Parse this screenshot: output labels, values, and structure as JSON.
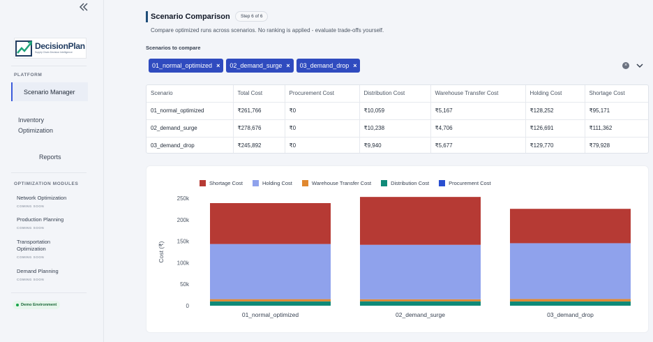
{
  "sidebar": {
    "collapse_icon": "double-chevron-left-icon",
    "logo": {
      "name": "DecisionPlan",
      "tagline": "Supply Chain Decision Intelligence"
    },
    "platform_label": "PLATFORM",
    "nav": [
      {
        "label": "Scenario Manager",
        "active": true
      },
      {
        "label": "Inventory Optimization"
      },
      {
        "label": "Reports"
      }
    ],
    "modules_label": "OPTIMIZATION MODULES",
    "modules": [
      {
        "label": "Network Optimization",
        "status": "COMING SOON"
      },
      {
        "label": "Production Planning",
        "status": "COMING SOON"
      },
      {
        "label": "Transportation Optimization",
        "status": "COMING SOON"
      },
      {
        "label": "Demand Planning",
        "status": "COMING SOON"
      }
    ],
    "environment": "Demo Environment"
  },
  "header": {
    "title": "Scenario Comparison",
    "step": "Step 6 of 6",
    "subtitle": "Compare optimized runs across scenarios. No ranking is applied - evaluate trade-offs yourself."
  },
  "selector": {
    "label": "Scenarios to compare",
    "chips": [
      "01_normal_optimized",
      "02_demand_surge",
      "03_demand_drop"
    ],
    "remove_glyph": "×"
  },
  "table": {
    "columns": [
      "Scenario",
      "Total Cost",
      "Procurement Cost",
      "Distribution Cost",
      "Warehouse Transfer Cost",
      "Holding Cost",
      "Shortage Cost"
    ],
    "rows": [
      [
        "01_normal_optimized",
        "₹261,766",
        "₹0",
        "₹10,059",
        "₹5,167",
        "₹128,252",
        "₹95,171"
      ],
      [
        "02_demand_surge",
        "₹278,676",
        "₹0",
        "₹10,238",
        "₹4,706",
        "₹126,691",
        "₹111,362"
      ],
      [
        "03_demand_drop",
        "₹245,892",
        "₹0",
        "₹9,940",
        "₹5,677",
        "₹129,770",
        "₹79,928"
      ]
    ]
  },
  "chart_data": {
    "type": "bar",
    "stacked": true,
    "categories": [
      "01_normal_optimized",
      "02_demand_surge",
      "03_demand_drop"
    ],
    "ylabel": "Cost (₹)",
    "ylim": [
      0,
      250000
    ],
    "yticks": [
      0,
      50000,
      100000,
      150000,
      200000,
      250000
    ],
    "ytick_labels": [
      "0",
      "50k",
      "100k",
      "150k",
      "200k",
      "250k"
    ],
    "legend": "top-left",
    "grid": false,
    "series": [
      {
        "name": "Procurement Cost",
        "color": "#2a4fd0",
        "values": [
          0,
          0,
          0
        ]
      },
      {
        "name": "Distribution Cost",
        "color": "#0f8a78",
        "values": [
          10059,
          10238,
          9940
        ]
      },
      {
        "name": "Warehouse Transfer Cost",
        "color": "#e0882f",
        "values": [
          5167,
          4706,
          5677
        ]
      },
      {
        "name": "Holding Cost",
        "color": "#8fa2ec",
        "values": [
          128252,
          126691,
          129770
        ]
      },
      {
        "name": "Shortage Cost",
        "color": "#b63a34",
        "values": [
          95171,
          111362,
          79928
        ]
      }
    ],
    "legend_order": [
      "Shortage Cost",
      "Holding Cost",
      "Warehouse Transfer Cost",
      "Distribution Cost",
      "Procurement Cost"
    ]
  }
}
